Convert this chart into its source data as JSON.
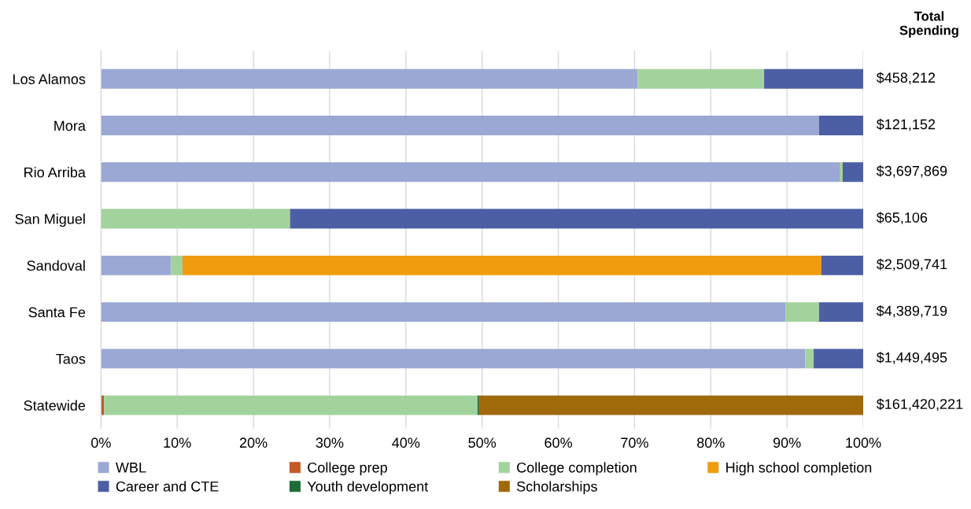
{
  "chart_data": {
    "type": "bar",
    "orientation": "horizontal",
    "stacked": true,
    "categories": [
      "Los Alamos",
      "Mora",
      "Rio Arriba",
      "San Miguel",
      "Sandoval",
      "Santa Fe",
      "Taos",
      "Statewide"
    ],
    "series": [
      {
        "name": "WBL",
        "color": "#9ba8d4",
        "values": [
          70.4,
          94.2,
          96.9,
          0,
          9.2,
          89.8,
          92.4,
          0
        ]
      },
      {
        "name": "College prep",
        "color": "#c55a28",
        "values": [
          0,
          0,
          0,
          0,
          0,
          0,
          0,
          0.4
        ]
      },
      {
        "name": "College completion",
        "color": "#a2d39c",
        "values": [
          16.6,
          0,
          0.4,
          24.8,
          1.5,
          4.4,
          1.1,
          49.0
        ]
      },
      {
        "name": "High school completion",
        "color": "#f09c0e",
        "values": [
          0,
          0,
          0,
          0,
          83.8,
          0,
          0,
          0
        ]
      },
      {
        "name": "Career and CTE",
        "color": "#4c5fa5",
        "values": [
          13.0,
          5.8,
          2.7,
          75.2,
          5.5,
          5.8,
          6.5,
          0
        ]
      },
      {
        "name": "Youth development",
        "color": "#1e6b3a",
        "values": [
          0,
          0,
          0,
          0,
          0,
          0,
          0,
          0.2
        ]
      },
      {
        "name": "Scholarships",
        "color": "#a0690a",
        "values": [
          0,
          0,
          0,
          0,
          0,
          0,
          0,
          50.4
        ]
      }
    ],
    "annotations": [
      "Total\nSpending",
      "$458,212",
      "$121,152",
      "$3,697,869",
      "$65,106",
      "$2,509,741",
      "$4,389,719",
      "$1,449,495",
      "$161,420,221"
    ],
    "xlim": [
      0,
      100
    ],
    "xticks": [
      {
        "value": 0,
        "label": "0%"
      },
      {
        "value": 10,
        "label": "10%"
      },
      {
        "value": 20,
        "label": "20%"
      },
      {
        "value": 30,
        "label": "30%"
      },
      {
        "value": 40,
        "label": "40%"
      },
      {
        "value": 50,
        "label": "50%"
      },
      {
        "value": 60,
        "label": "60%"
      },
      {
        "value": 70,
        "label": "70%"
      },
      {
        "value": 80,
        "label": "80%"
      },
      {
        "value": 90,
        "label": "90%"
      },
      {
        "value": 100,
        "label": "100%"
      }
    ],
    "grid": "x",
    "legend": "bottom"
  }
}
